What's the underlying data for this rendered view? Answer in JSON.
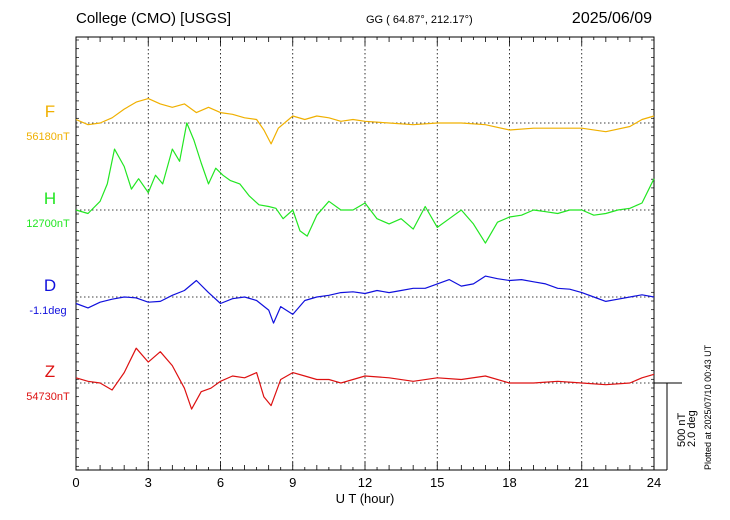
{
  "header": {
    "station": "College (CMO)  [USGS]",
    "coords": "GG ( 64.87°, 212.17°)",
    "date": "2025/06/09"
  },
  "plotted_note": "Plotted at 2025/07/10 00:43 UT",
  "colors": {
    "F": "#f0b000",
    "H": "#22e622",
    "D": "#1010dd",
    "Z": "#dd1111"
  },
  "chart_data": {
    "type": "line",
    "title": "College (CMO)  [USGS]",
    "xlabel": "U T (hour)",
    "xlim": [
      0,
      24
    ],
    "x_ticks": [
      "0",
      "3",
      "6",
      "9",
      "12",
      "15",
      "18",
      "21",
      "24"
    ],
    "grid": true,
    "scale_bar": {
      "nT": "500 nT",
      "deg": "2.0 deg",
      "nT_value": 500,
      "deg_value": 2.0
    },
    "series": [
      {
        "name": "F",
        "baseline_label": "56180nT",
        "unit": "nT",
        "x": [
          0,
          0.5,
          1,
          1.5,
          2,
          2.5,
          3,
          3.5,
          4,
          4.5,
          5,
          5.5,
          6,
          6.5,
          7,
          7.5,
          7.8,
          8.1,
          8.4,
          9,
          9.5,
          10,
          10.5,
          11,
          11.5,
          12,
          13,
          14,
          15,
          16,
          17,
          18,
          19,
          20,
          21,
          22,
          23,
          23.5,
          24
        ],
        "values": [
          20,
          -10,
          0,
          30,
          80,
          120,
          140,
          110,
          90,
          110,
          60,
          90,
          60,
          50,
          30,
          20,
          -40,
          -120,
          -30,
          40,
          20,
          40,
          30,
          10,
          20,
          10,
          0,
          -10,
          0,
          0,
          -10,
          -40,
          -30,
          -30,
          -30,
          -50,
          -20,
          20,
          40
        ]
      },
      {
        "name": "H",
        "baseline_label": "12700nT",
        "unit": "nT",
        "x": [
          0,
          0.5,
          1,
          1.3,
          1.6,
          2,
          2.3,
          2.6,
          3,
          3.3,
          3.6,
          4,
          4.3,
          4.6,
          4.9,
          5.2,
          5.5,
          5.8,
          6.1,
          6.4,
          6.8,
          7.2,
          7.6,
          8,
          8.3,
          8.6,
          9,
          9.3,
          9.6,
          10,
          10.5,
          11,
          11.5,
          12,
          12.5,
          13,
          13.5,
          14,
          14.5,
          15,
          15.5,
          16,
          16.5,
          17,
          17.5,
          18,
          18.5,
          19,
          19.5,
          20,
          20.5,
          21,
          21.5,
          22,
          22.5,
          23,
          23.5,
          24
        ],
        "values": [
          0,
          -20,
          50,
          150,
          350,
          250,
          120,
          180,
          100,
          200,
          150,
          350,
          280,
          500,
          400,
          270,
          150,
          240,
          200,
          170,
          150,
          80,
          30,
          20,
          10,
          -50,
          0,
          -120,
          -150,
          -30,
          50,
          0,
          0,
          40,
          -50,
          -80,
          -50,
          -110,
          20,
          -100,
          -50,
          0,
          -80,
          -190,
          -70,
          -40,
          -30,
          0,
          -10,
          -20,
          0,
          0,
          -30,
          -20,
          0,
          10,
          40,
          180
        ]
      },
      {
        "name": "D",
        "baseline_label": "-1.1deg",
        "unit": "deg",
        "x": [
          0,
          0.5,
          1,
          1.5,
          2,
          2.5,
          3,
          3.5,
          4,
          4.5,
          5,
          5.5,
          6,
          6.5,
          7,
          7.5,
          8,
          8.2,
          8.5,
          9,
          9.5,
          10,
          10.5,
          11,
          11.5,
          12,
          12.5,
          13,
          13.5,
          14,
          14.5,
          15,
          15.5,
          16,
          16.5,
          17,
          17.5,
          18,
          18.5,
          19,
          19.5,
          20,
          20.5,
          21,
          21.5,
          22,
          22.5,
          23,
          23.5,
          24
        ],
        "values": [
          -0.15,
          -0.25,
          -0.12,
          -0.05,
          0.0,
          -0.02,
          -0.12,
          -0.1,
          0.04,
          0.15,
          0.38,
          0.1,
          -0.15,
          -0.04,
          0.0,
          -0.08,
          -0.3,
          -0.6,
          -0.22,
          -0.4,
          -0.08,
          0.0,
          0.04,
          0.1,
          0.12,
          0.08,
          0.15,
          0.1,
          0.15,
          0.2,
          0.2,
          0.3,
          0.4,
          0.25,
          0.3,
          0.48,
          0.42,
          0.38,
          0.4,
          0.35,
          0.3,
          0.2,
          0.18,
          0.1,
          0.0,
          -0.1,
          -0.05,
          0.0,
          0.05,
          0.0
        ]
      },
      {
        "name": "Z",
        "baseline_label": "54730nT",
        "unit": "nT",
        "x": [
          0,
          0.5,
          1,
          1.5,
          2,
          2.5,
          3,
          3.5,
          4,
          4.5,
          4.8,
          5.2,
          5.6,
          6,
          6.5,
          7,
          7.5,
          7.8,
          8.1,
          8.5,
          9,
          9.5,
          10,
          10.5,
          11,
          11.5,
          12,
          13,
          14,
          15,
          16,
          17,
          18,
          19,
          20,
          21,
          22,
          23,
          23.5,
          24
        ],
        "values": [
          30,
          10,
          0,
          -40,
          60,
          200,
          120,
          180,
          100,
          -30,
          -150,
          -50,
          -30,
          10,
          40,
          30,
          60,
          -80,
          -130,
          20,
          60,
          40,
          20,
          20,
          0,
          20,
          40,
          30,
          10,
          30,
          20,
          40,
          0,
          0,
          10,
          0,
          -10,
          0,
          30,
          50
        ]
      }
    ]
  }
}
